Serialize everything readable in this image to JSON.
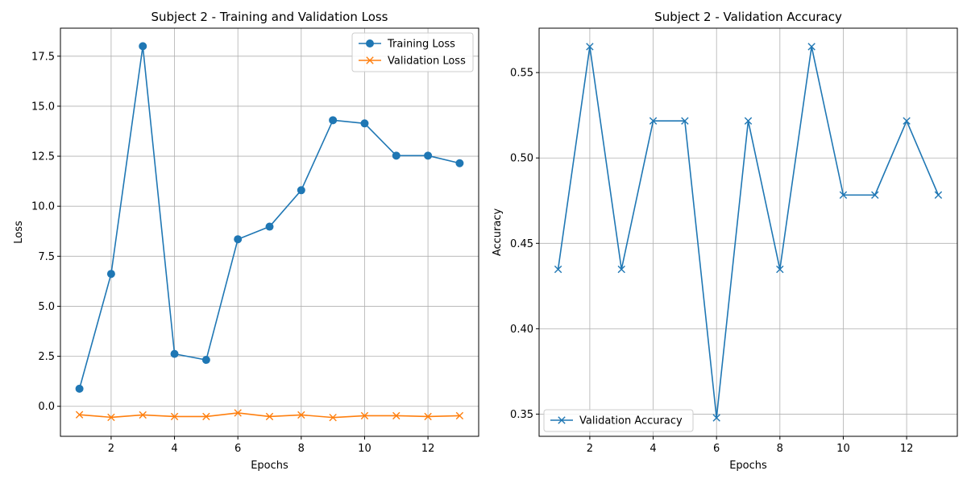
{
  "chart_data": [
    {
      "type": "line",
      "title": "Subject 2 - Training and Validation Loss",
      "xlabel": "Epochs",
      "ylabel": "Loss",
      "xlim": [
        0.4,
        13.6
      ],
      "ylim": [
        -1.5,
        18.9
      ],
      "xticks": [
        2,
        4,
        6,
        8,
        10,
        12
      ],
      "xtick_labels": [
        "2",
        "4",
        "6",
        "8",
        "10",
        "12"
      ],
      "yticks": [
        0.0,
        2.5,
        5.0,
        7.5,
        10.0,
        12.5,
        15.0,
        17.5
      ],
      "ytick_labels": [
        "0.0",
        "2.5",
        "5.0",
        "7.5",
        "10.0",
        "12.5",
        "15.0",
        "17.5"
      ],
      "grid": true,
      "legend_position": "upper right",
      "x": [
        1,
        2,
        3,
        4,
        5,
        6,
        7,
        8,
        9,
        10,
        11,
        12,
        13
      ],
      "series": [
        {
          "name": "Training Loss",
          "color": "#1f77b4",
          "marker": "circle",
          "values": [
            0.88,
            6.62,
            18.0,
            2.62,
            2.32,
            8.35,
            8.98,
            10.8,
            14.3,
            14.14,
            12.53,
            12.53,
            12.15
          ]
        },
        {
          "name": "Validation Loss",
          "color": "#ff7f0e",
          "marker": "x",
          "values": [
            -0.42,
            -0.55,
            -0.43,
            -0.51,
            -0.51,
            -0.33,
            -0.51,
            -0.43,
            -0.56,
            -0.47,
            -0.47,
            -0.51,
            -0.47
          ]
        }
      ]
    },
    {
      "type": "line",
      "title": "Subject 2 - Validation Accuracy",
      "xlabel": "Epochs",
      "ylabel": "Accuracy",
      "xlim": [
        0.4,
        13.6
      ],
      "ylim": [
        0.337,
        0.576
      ],
      "xticks": [
        2,
        4,
        6,
        8,
        10,
        12
      ],
      "xtick_labels": [
        "2",
        "4",
        "6",
        "8",
        "10",
        "12"
      ],
      "yticks": [
        0.35,
        0.4,
        0.45,
        0.5,
        0.55
      ],
      "ytick_labels": [
        "0.35",
        "0.40",
        "0.45",
        "0.50",
        "0.55"
      ],
      "grid": true,
      "legend_position": "lower left",
      "x": [
        1,
        2,
        3,
        4,
        5,
        6,
        7,
        8,
        9,
        10,
        11,
        12,
        13
      ],
      "series": [
        {
          "name": "Validation Accuracy",
          "color": "#1f77b4",
          "marker": "x",
          "values": [
            0.4348,
            0.5652,
            0.4348,
            0.5217,
            0.5217,
            0.3478,
            0.5217,
            0.4348,
            0.5652,
            0.4783,
            0.4783,
            0.5217,
            0.4783
          ]
        }
      ]
    }
  ]
}
